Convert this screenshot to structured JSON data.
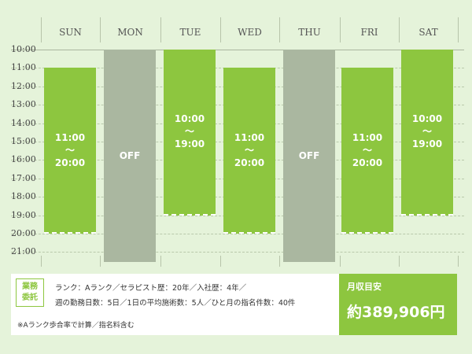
{
  "days": [
    "SUN",
    "MON",
    "TUE",
    "WED",
    "THU",
    "FRI",
    "SAT"
  ],
  "times": [
    "10:00",
    "11:00",
    "12:00",
    "13:00",
    "14:00",
    "15:00",
    "16:00",
    "17:00",
    "18:00",
    "19:00",
    "20:00",
    "21:00"
  ],
  "shifts": [
    {
      "day": "SUN",
      "status": "on",
      "start": "11:00",
      "tilde": "～",
      "end": "20:00"
    },
    {
      "day": "MON",
      "status": "off",
      "label": "OFF"
    },
    {
      "day": "TUE",
      "status": "on",
      "start": "10:00",
      "tilde": "～",
      "end": "19:00"
    },
    {
      "day": "WED",
      "status": "on",
      "start": "11:00",
      "tilde": "～",
      "end": "20:00"
    },
    {
      "day": "THU",
      "status": "off",
      "label": "OFF"
    },
    {
      "day": "FRI",
      "status": "on",
      "start": "11:00",
      "tilde": "～",
      "end": "20:00"
    },
    {
      "day": "SAT",
      "status": "on",
      "start": "10:00",
      "tilde": "～",
      "end": "19:00"
    }
  ],
  "contract": {
    "badge_line1": "業務",
    "badge_line2": "委託",
    "line1": "ランク：Aランク／セラピスト歴：20年／入社歴：4年／",
    "line2": "週の勤務日数：5日／1日の平均施術数：5人／ひと月の指名件数：40件",
    "note": "※Aランク歩合率で計算／指名料含む"
  },
  "income": {
    "label": "月収目安",
    "value": "約389,906円"
  },
  "colors": {
    "on_shift": "#8dc63f",
    "off_shift": "#aab7a0",
    "background": "#e5f3da"
  }
}
